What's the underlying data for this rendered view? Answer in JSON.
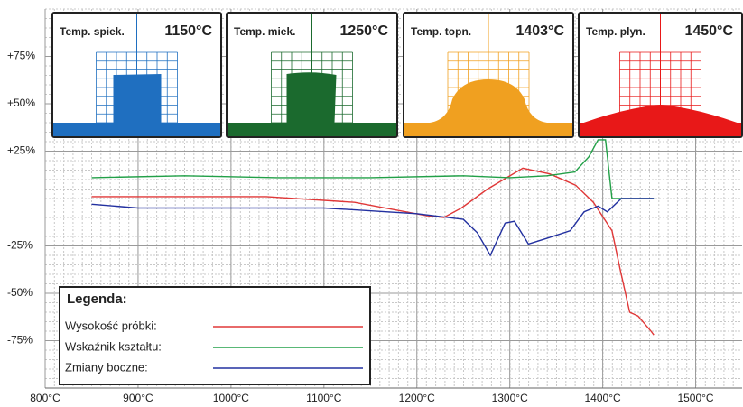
{
  "chart_data": {
    "type": "line",
    "panels": [
      {
        "label": "Temp. spiek.",
        "temp": "1150°C",
        "color": "#1f6fc0"
      },
      {
        "label": "Temp. miek.",
        "temp": "1250°C",
        "color": "#1b6a2e"
      },
      {
        "label": "Temp. topn.",
        "temp": "1403°C",
        "color": "#f0a020"
      },
      {
        "label": "Temp. plyn.",
        "temp": "1450°C",
        "color": "#e81818"
      }
    ],
    "legend_title": "Legenda:",
    "series": [
      {
        "name": "Wysokość próbki:",
        "color": "#e03838",
        "x": [
          850,
          943,
          1038,
          1133,
          1210,
          1229,
          1248,
          1276,
          1314,
          1343,
          1371,
          1390,
          1410,
          1419,
          1429,
          1438,
          1452,
          1455
        ],
        "values": [
          1,
          1,
          1,
          -2,
          -9,
          -10,
          -5,
          5,
          16,
          13,
          7,
          -2,
          -17,
          -38,
          -60,
          -62,
          -70,
          -72
        ]
      },
      {
        "name": "Wskaźnik kształtu:",
        "color": "#22a048",
        "x": [
          850,
          950,
          1050,
          1150,
          1250,
          1300,
          1340,
          1370,
          1385,
          1395,
          1403,
          1410,
          1420,
          1455
        ],
        "values": [
          11,
          12,
          11,
          11,
          12,
          11,
          12,
          14,
          22,
          31,
          31,
          0,
          0,
          0
        ]
      },
      {
        "name": "Zmiany boczne:",
        "color": "#2230a0",
        "x": [
          850,
          900,
          1000,
          1100,
          1200,
          1250,
          1265,
          1279,
          1295,
          1305,
          1320,
          1340,
          1365,
          1380,
          1395,
          1405,
          1420,
          1455
        ],
        "values": [
          -3,
          -5,
          -5,
          -5,
          -8,
          -11,
          -18,
          -30,
          -13,
          -12,
          -24,
          -21,
          -17,
          -7,
          -4,
          -7,
          0,
          0
        ]
      }
    ],
    "xlim": [
      800,
      1550
    ],
    "xticks": [
      {
        "value": 800,
        "label": "800°C"
      },
      {
        "value": 900,
        "label": "900°C"
      },
      {
        "value": 1000,
        "label": "1000°C"
      },
      {
        "value": 1100,
        "label": "1100°C"
      },
      {
        "value": 1200,
        "label": "1200°C"
      },
      {
        "value": 1300,
        "label": "1300°C"
      },
      {
        "value": 1400,
        "label": "1400°C"
      },
      {
        "value": 1500,
        "label": "1500°C"
      }
    ],
    "ylim": [
      -100,
      100
    ],
    "yticks": [
      {
        "value": 75,
        "label": "+75%"
      },
      {
        "value": 50,
        "label": "+50%"
      },
      {
        "value": 25,
        "label": "+25%"
      },
      {
        "value": -25,
        "label": "-25%"
      },
      {
        "value": -50,
        "label": "-50%"
      },
      {
        "value": -75,
        "label": "-75%"
      }
    ],
    "grid": true
  }
}
